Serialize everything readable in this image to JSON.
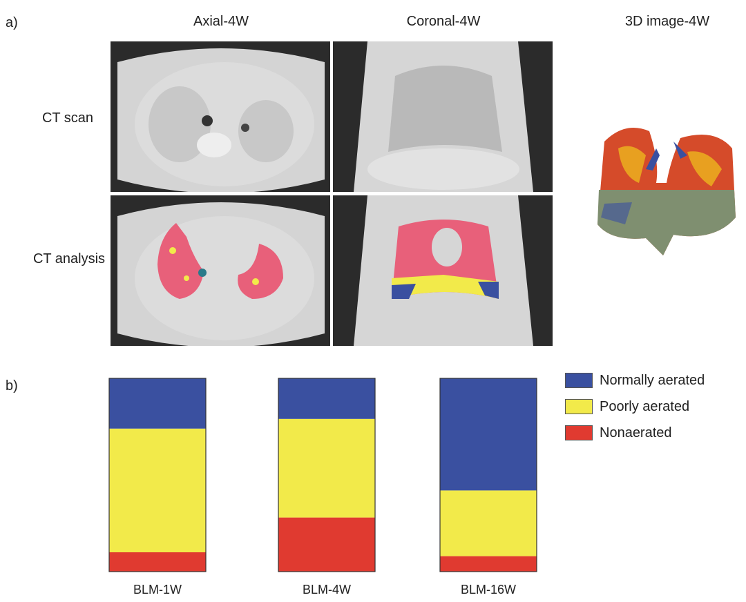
{
  "panel_a": {
    "label": "a)",
    "columns": [
      "Axial-4W",
      "Coronal-4W",
      "3D image-4W"
    ],
    "rows": [
      "CT scan",
      "CT analysis"
    ]
  },
  "panel_b": {
    "label": "b)"
  },
  "colors": {
    "normal": "#3a50a0",
    "poor": "#f2ea4a",
    "non": "#e03a30"
  },
  "chart_data": {
    "type": "bar",
    "stacked": true,
    "normalized": true,
    "categories": [
      "BLM-1W",
      "BLM-4W",
      "BLM-16W"
    ],
    "series": [
      {
        "name": "Nonaerated",
        "values": [
          10,
          28,
          8
        ]
      },
      {
        "name": "Poorly aerated",
        "values": [
          64,
          51,
          34
        ]
      },
      {
        "name": "Normally aerated",
        "values": [
          26,
          21,
          58
        ]
      }
    ],
    "legend": [
      "Normally aerated",
      "Poorly aerated",
      "Nonaerated"
    ],
    "legend_position": "top-right",
    "ylim": [
      0,
      100
    ],
    "grid": false
  }
}
